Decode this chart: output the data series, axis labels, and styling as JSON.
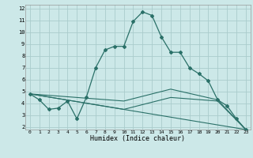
{
  "xlabel": "Humidex (Indice chaleur)",
  "bg_color": "#cce8e8",
  "grid_color": "#aacccc",
  "line_color": "#2a7068",
  "xlim": [
    -0.5,
    23.5
  ],
  "ylim": [
    1.8,
    12.3
  ],
  "yticks": [
    2,
    3,
    4,
    5,
    6,
    7,
    8,
    9,
    10,
    11,
    12
  ],
  "xticks": [
    0,
    1,
    2,
    3,
    4,
    5,
    6,
    7,
    8,
    9,
    10,
    11,
    12,
    13,
    14,
    15,
    16,
    17,
    18,
    19,
    20,
    21,
    22,
    23
  ],
  "xtick_labels": [
    "0",
    "1",
    "2",
    "3",
    "4",
    "5",
    "6",
    "7",
    "8",
    "9",
    "10",
    "11",
    "12",
    "13",
    "14",
    "15",
    "16",
    "17",
    "18",
    "19",
    "20",
    "21",
    "22",
    "23"
  ],
  "line1_x": [
    0,
    1,
    2,
    3,
    4,
    5,
    6,
    7,
    8,
    9,
    10,
    11,
    12,
    13,
    14,
    15,
    16,
    17,
    18,
    19,
    20,
    21,
    22,
    23
  ],
  "line1_y": [
    4.8,
    4.3,
    3.5,
    3.6,
    4.2,
    2.7,
    4.5,
    7.0,
    8.5,
    8.8,
    8.8,
    10.9,
    11.7,
    11.4,
    9.6,
    8.3,
    8.3,
    7.0,
    6.5,
    5.9,
    4.3,
    3.8,
    2.7,
    1.8
  ],
  "line2_x": [
    0,
    23
  ],
  "line2_y": [
    4.8,
    1.8
  ],
  "line3_x": [
    0,
    10,
    15,
    20,
    23
  ],
  "line3_y": [
    4.8,
    4.2,
    5.2,
    4.3,
    1.8
  ],
  "line4_x": [
    0,
    10,
    15,
    20,
    23
  ],
  "line4_y": [
    4.8,
    3.5,
    4.5,
    4.2,
    1.8
  ]
}
